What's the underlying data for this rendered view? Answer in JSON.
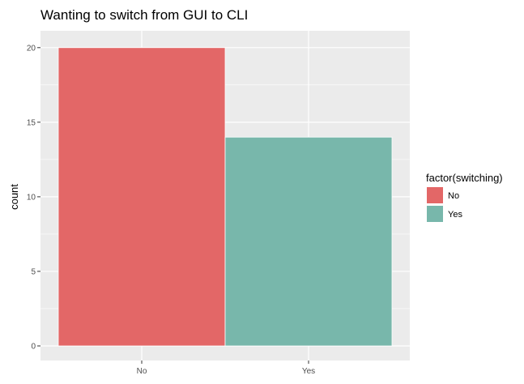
{
  "chart_data": {
    "type": "bar",
    "title": "Wanting to switch from GUI to CLI",
    "xlabel": "",
    "ylabel": "count",
    "categories": [
      "No",
      "Yes"
    ],
    "values": [
      20,
      14
    ],
    "ylim": [
      0,
      21
    ],
    "yticks": [
      0,
      5,
      10,
      15,
      20
    ],
    "grid": true,
    "legend": {
      "title": "factor(switching)",
      "position": "right",
      "entries": [
        "No",
        "Yes"
      ]
    },
    "colors": [
      "#e36767",
      "#78b7ab"
    ],
    "panel_background": "#ebebeb"
  }
}
